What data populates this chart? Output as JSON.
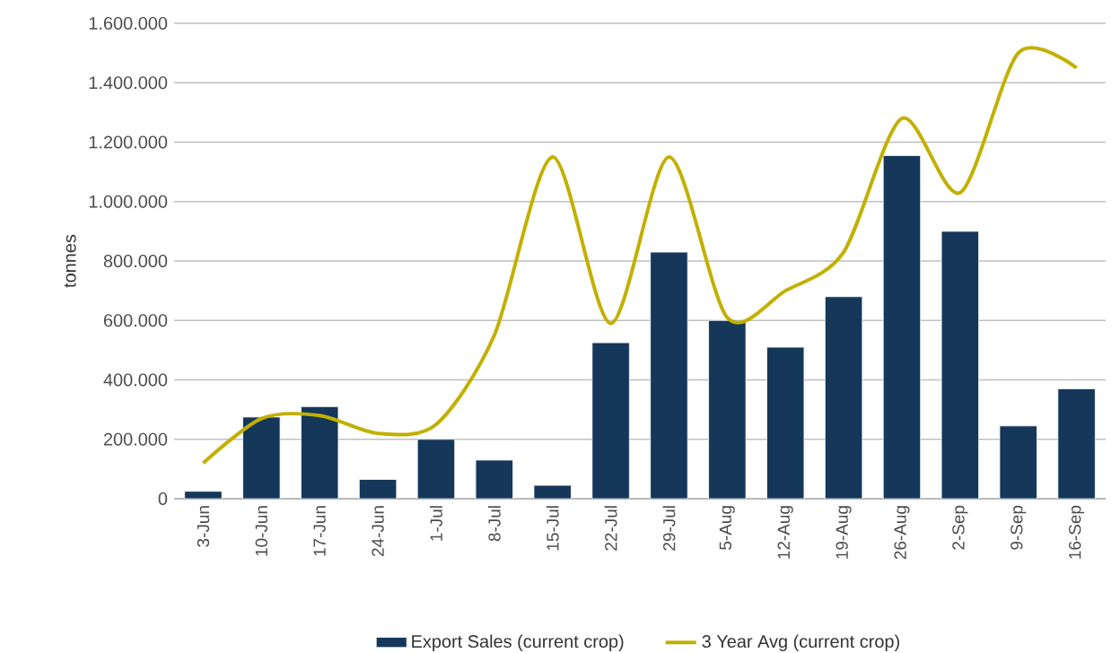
{
  "chart_data": {
    "type": "bar",
    "ylabel": "tonnes",
    "categories": [
      "3-Jun",
      "10-Jun",
      "17-Jun",
      "24-Jun",
      "1-Jul",
      "8-Jul",
      "15-Jul",
      "22-Jul",
      "29-Jul",
      "5-Aug",
      "12-Aug",
      "19-Aug",
      "26-Aug",
      "2-Sep",
      "9-Sep",
      "16-Sep"
    ],
    "series": [
      {
        "name": "Export Sales (current crop)",
        "type": "bar",
        "color": "#14375a",
        "values": [
          25000,
          275000,
          310000,
          65000,
          200000,
          130000,
          45000,
          525000,
          830000,
          600000,
          510000,
          680000,
          1155000,
          900000,
          245000,
          370000
        ]
      },
      {
        "name": "3 Year Avg (current crop)",
        "type": "line",
        "color": "#c2b000",
        "values": [
          120000,
          270000,
          280000,
          220000,
          250000,
          550000,
          1150000,
          590000,
          1150000,
          610000,
          700000,
          830000,
          1280000,
          1030000,
          1500000,
          1450000
        ]
      }
    ],
    "ylim": [
      0,
      1600000
    ],
    "yticks": [
      {
        "value": 0,
        "label": "0"
      },
      {
        "value": 200000,
        "label": "200.000"
      },
      {
        "value": 400000,
        "label": "400.000"
      },
      {
        "value": 600000,
        "label": "600.000"
      },
      {
        "value": 800000,
        "label": "800.000"
      },
      {
        "value": 1000000,
        "label": "1.000.000"
      },
      {
        "value": 1200000,
        "label": "1.200.000"
      },
      {
        "value": 1400000,
        "label": "1.400.000"
      },
      {
        "value": 1600000,
        "label": "1.600.000"
      }
    ],
    "grid": "y",
    "legend": "bottom",
    "marker": "none",
    "line_style": "solid"
  }
}
